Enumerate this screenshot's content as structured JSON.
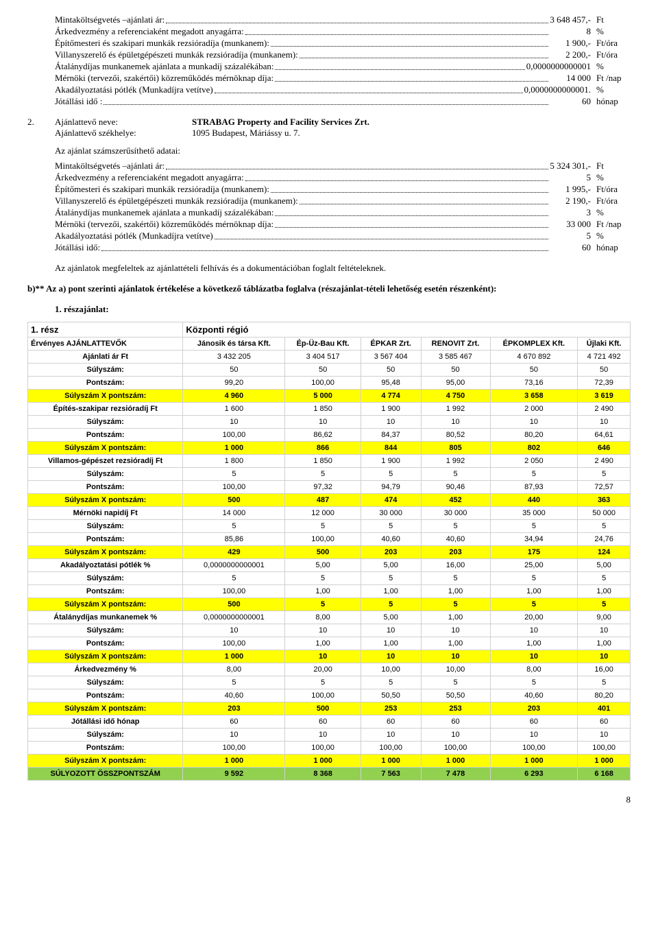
{
  "block1": {
    "lines": [
      {
        "label": "Mintaköltségvetés –ajánlati ár:",
        "value": "3 648 457,-",
        "unit": "Ft"
      },
      {
        "label": "Árkedvezmény a referenciaként megadott anyagárra:",
        "value": "8",
        "unit": "%"
      },
      {
        "label": "Építőmesteri és szakipari munkák rezsióradíja (munkanem):",
        "value": "1 900,-",
        "unit": "Ft/óra"
      },
      {
        "label": "Villanyszerelő és épületgépészeti munkák rezsióradíja (munkanem):",
        "value": "2 200,-",
        "unit": "Ft/óra"
      },
      {
        "label": "Átalánydíjas munkanemek ajánlata a munkadíj százalékában:",
        "value": "0,0000000000001",
        "unit": "%"
      },
      {
        "label": "Mérnöki (tervezői, szakértői) közreműködés mérnöknap díja:",
        "value": "14 000",
        "unit": "Ft /nap"
      },
      {
        "label": "Akadályoztatási pótlék (Munkadíjra vetítve)",
        "value": "0,0000000000001.",
        "unit": "%"
      },
      {
        "label": "Jótállási idő  :",
        "value": "60",
        "unit": "hónap"
      }
    ]
  },
  "bidder2": {
    "num": "2.",
    "name_lbl": "Ajánlattevő neve:",
    "name_val": "STRABAG Property and Facility Services Zrt.",
    "seat_lbl": "Ajánlattevő székhelye:",
    "seat_val": "1095 Budapest, Máriássy u. 7."
  },
  "block2_title": "Az ajánlat számszerűsíthető adatai:",
  "block2": {
    "lines": [
      {
        "label": "Mintaköltségvetés –ajánlati ár:",
        "value": "5 324 301,-",
        "unit": "Ft"
      },
      {
        "label": "Árkedvezmény a referenciaként megadott anyagárra:",
        "value": "5",
        "unit": "%"
      },
      {
        "label": "Építőmesteri és szakipari munkák rezsióradíja (munkanem):",
        "value": "1 995,-",
        "unit": "Ft/óra"
      },
      {
        "label": "Villanyszerelő és épületgépészeti munkák rezsióradíja (munkanem):",
        "value": "2 190,-",
        "unit": "Ft/óra"
      },
      {
        "label": "Átalánydíjas munkanemek ajánlata a munkadíj százalékában:",
        "value": "3",
        "unit": "%"
      },
      {
        "label": "Mérnöki (tervezői, szakértői) közreműködés mérnöknap díja:",
        "value": "33 000",
        "unit": "Ft /nap"
      },
      {
        "label": "Akadályoztatási pótlék (Munkadíjra vetítve)",
        "value": "5",
        "unit": "%"
      },
      {
        "label": "Jótállási idő:",
        "value": "60",
        "unit": "hónap"
      }
    ]
  },
  "para1": "Az ajánlatok megfeleltek az ajánlattételi felhívás és a dokumentációban foglalt feltételeknek.",
  "para2": "b)** Az a) pont szerinti ajánlatok értékelése a következő táblázatba foglalva (részajánlat-tételi lehetőség esetén részenként):",
  "part_label": "1. részajánlat:",
  "table": {
    "region_label": "1. rész",
    "region_name": "Központi régió",
    "bidder_header": "Érvényes AJÁNLATTEVŐK",
    "bidders": [
      "Jánosik és társa Kft.",
      "Ép-Üz-Bau Kft.",
      "ÉPKAR Zrt.",
      "RENOVIT Zrt.",
      "ÉPKOMPLEX Kft.",
      "Újlaki Kft."
    ],
    "groups": [
      {
        "title": "Ajánlati ár Ft",
        "vals": [
          "3 432 205",
          "3 404 517",
          "3 567 404",
          "3 585 467",
          "4 670 892",
          "4 721 492"
        ],
        "suly": [
          "50",
          "50",
          "50",
          "50",
          "50",
          "50"
        ],
        "pont": [
          "99,20",
          "100,00",
          "95,48",
          "95,00",
          "73,16",
          "72,39"
        ],
        "sxp": [
          "4 960",
          "5 000",
          "4 774",
          "4 750",
          "3 658",
          "3 619"
        ]
      },
      {
        "title": "Építés-szakipar rezsióradíj Ft",
        "vals": [
          "1 600",
          "1 850",
          "1 900",
          "1 992",
          "2 000",
          "2 490"
        ],
        "suly": [
          "10",
          "10",
          "10",
          "10",
          "10",
          "10"
        ],
        "pont": [
          "100,00",
          "86,62",
          "84,37",
          "80,52",
          "80,20",
          "64,61"
        ],
        "sxp": [
          "1 000",
          "866",
          "844",
          "805",
          "802",
          "646"
        ]
      },
      {
        "title": "Villamos-gépészet rezsióradíj Ft",
        "vals": [
          "1 800",
          "1 850",
          "1 900",
          "1 992",
          "2 050",
          "2 490"
        ],
        "suly": [
          "5",
          "5",
          "5",
          "5",
          "5",
          "5"
        ],
        "pont": [
          "100,00",
          "97,32",
          "94,79",
          "90,46",
          "87,93",
          "72,57"
        ],
        "sxp": [
          "500",
          "487",
          "474",
          "452",
          "440",
          "363"
        ]
      },
      {
        "title": "Mérnöki napidíj Ft",
        "vals": [
          "14 000",
          "12 000",
          "30 000",
          "30 000",
          "35 000",
          "50 000"
        ],
        "suly": [
          "5",
          "5",
          "5",
          "5",
          "5",
          "5"
        ],
        "pont": [
          "85,86",
          "100,00",
          "40,60",
          "40,60",
          "34,94",
          "24,76"
        ],
        "sxp": [
          "429",
          "500",
          "203",
          "203",
          "175",
          "124"
        ]
      },
      {
        "title": "Akadályoztatási pótlék %",
        "vals": [
          "0,0000000000001",
          "5,00",
          "5,00",
          "16,00",
          "25,00",
          "5,00"
        ],
        "suly": [
          "5",
          "5",
          "5",
          "5",
          "5",
          "5"
        ],
        "pont": [
          "100,00",
          "1,00",
          "1,00",
          "1,00",
          "1,00",
          "1,00"
        ],
        "sxp": [
          "500",
          "5",
          "5",
          "5",
          "5",
          "5"
        ]
      },
      {
        "title": "Átalánydíjas munkanemek %",
        "vals": [
          "0,0000000000001",
          "8,00",
          "5,00",
          "1,00",
          "20,00",
          "9,00"
        ],
        "suly": [
          "10",
          "10",
          "10",
          "10",
          "10",
          "10"
        ],
        "pont": [
          "100,00",
          "1,00",
          "1,00",
          "1,00",
          "1,00",
          "1,00"
        ],
        "sxp": [
          "1 000",
          "10",
          "10",
          "10",
          "10",
          "10"
        ]
      },
      {
        "title": "Árkedvezmény %",
        "vals": [
          "8,00",
          "20,00",
          "10,00",
          "10,00",
          "8,00",
          "16,00"
        ],
        "suly": [
          "5",
          "5",
          "5",
          "5",
          "5",
          "5"
        ],
        "pont": [
          "40,60",
          "100,00",
          "50,50",
          "50,50",
          "40,60",
          "80,20"
        ],
        "sxp": [
          "203",
          "500",
          "253",
          "253",
          "203",
          "401"
        ]
      },
      {
        "title": "Jótállási idő hónap",
        "vals": [
          "60",
          "60",
          "60",
          "60",
          "60",
          "60"
        ],
        "suly": [
          "10",
          "10",
          "10",
          "10",
          "10",
          "10"
        ],
        "pont": [
          "100,00",
          "100,00",
          "100,00",
          "100,00",
          "100,00",
          "100,00"
        ],
        "sxp": [
          "1 000",
          "1 000",
          "1 000",
          "1 000",
          "1 000",
          "1 000"
        ]
      }
    ],
    "suly_lbl": "Súlyszám:",
    "pont_lbl": "Pontszám:",
    "sxp_lbl": "Súlyszám X pontszám:",
    "total_lbl": "SÚLYOZOTT ÖSSZPONTSZÁM",
    "total": [
      "9 592",
      "8 368",
      "7 563",
      "7 478",
      "6 293",
      "6 168"
    ]
  },
  "page_num": "8"
}
